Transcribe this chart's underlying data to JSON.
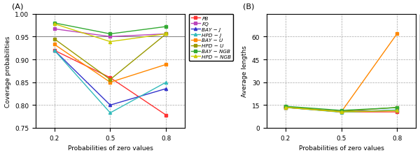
{
  "x": [
    0.2,
    0.5,
    0.8
  ],
  "series_A": {
    "PB": [
      0.92,
      0.86,
      0.778
    ],
    "FQ": [
      0.967,
      0.95,
      0.956
    ],
    "BAY-J": [
      0.92,
      0.8,
      0.836
    ],
    "HPD-J": [
      0.92,
      0.783,
      0.85
    ],
    "BAY-U": [
      0.933,
      0.85,
      0.889
    ],
    "HPD-U": [
      0.945,
      0.856,
      0.956
    ],
    "BAY-NGB": [
      0.98,
      0.956,
      0.972
    ],
    "HPD-NGB": [
      0.978,
      0.939,
      0.956
    ]
  },
  "series_B": {
    "PB": [
      14.0,
      10.5,
      10.5
    ],
    "FQ": [
      13.5,
      10.8,
      11.5
    ],
    "BAY-J": [
      13.5,
      10.5,
      11.5
    ],
    "HPD-J": [
      13.4,
      10.3,
      11.8
    ],
    "BAY-U": [
      13.5,
      10.5,
      62.0
    ],
    "HPD-U": [
      13.8,
      10.8,
      13.5
    ],
    "BAY-NGB": [
      14.2,
      11.5,
      13.3
    ],
    "HPD-NGB": [
      13.5,
      10.5,
      11.3
    ]
  },
  "colors": {
    "PB": "#FF3333",
    "FQ": "#BB44BB",
    "BAY-J": "#3333CC",
    "HPD-J": "#33BBBB",
    "BAY-U": "#FF8800",
    "HPD-U": "#999900",
    "BAY-NGB": "#33AA33",
    "HPD-NGB": "#CCCC00"
  },
  "markers": {
    "PB": "s",
    "FQ": "s",
    "BAY-J": "^",
    "HPD-J": "^",
    "BAY-U": "s",
    "HPD-U": "s",
    "BAY-NGB": "s",
    "HPD-NGB": "^"
  },
  "legend_labels": {
    "PB": "PB",
    "FQ": "FQ",
    "BAY-J": "BAY − J",
    "HPD-J": "HPD − J",
    "BAY-U": "BAY − U",
    "HPD-U": "HPD − U",
    "BAY-NGB": "BAY − NGB",
    "HPD-NGB": "HPD − NGB"
  },
  "ylim_A": [
    0.75,
    1.0
  ],
  "ylim_B": [
    0,
    75
  ],
  "yticks_A": [
    0.75,
    0.8,
    0.85,
    0.9,
    0.95,
    1.0
  ],
  "yticks_B": [
    0,
    15,
    30,
    45,
    60
  ],
  "hline_A": 0.95,
  "xlabel": "Probabilities of zero values",
  "ylabel_A": "Coverage probabilities",
  "ylabel_B": "Average lengths",
  "label_A": "(A)",
  "label_B": "(B)"
}
